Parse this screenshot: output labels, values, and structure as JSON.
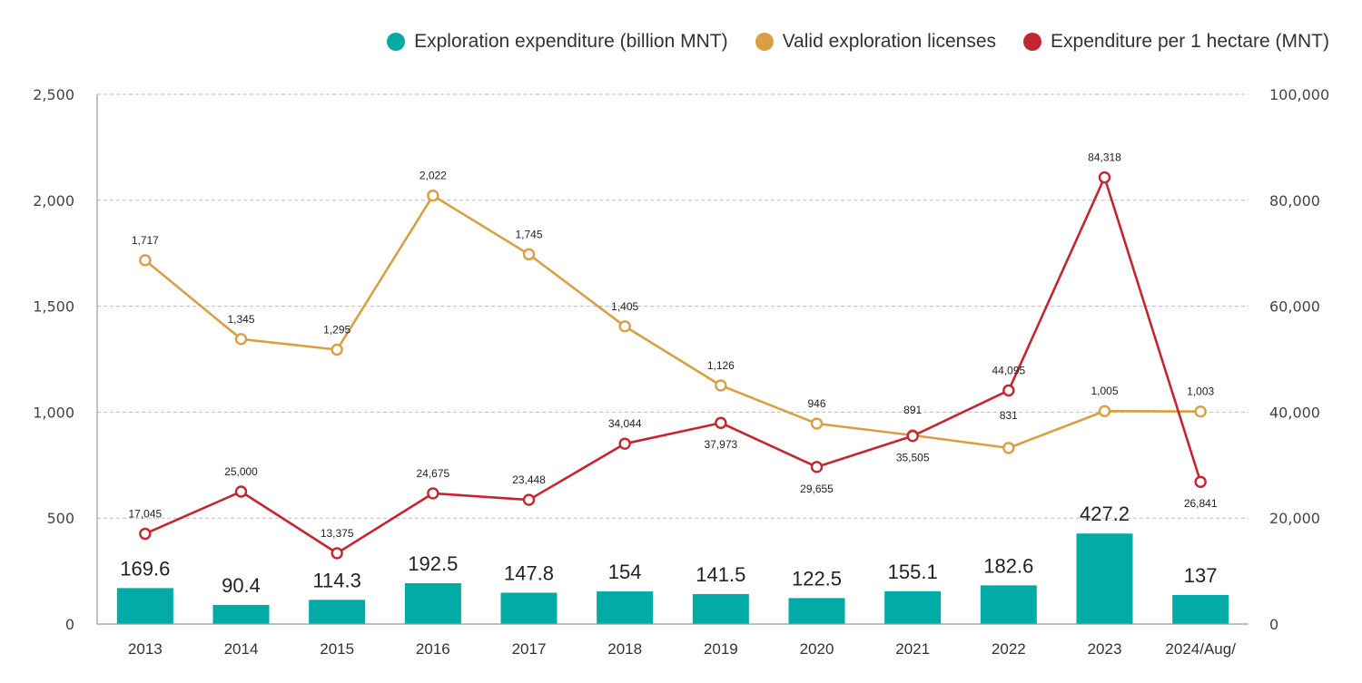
{
  "chart_data": {
    "type": "bar+line",
    "title": "",
    "categories": [
      "2013",
      "2014",
      "2015",
      "2016",
      "2017",
      "2018",
      "2019",
      "2020",
      "2021",
      "2022",
      "2023",
      "2024/Aug/"
    ],
    "legend_position": "top-right",
    "grid": true,
    "left_axis": {
      "ylim": [
        0,
        2500
      ],
      "ticks": [
        "0",
        "500",
        "1,000",
        "1,500",
        "2,000",
        "2,500"
      ],
      "tick_values": [
        0,
        500,
        1000,
        1500,
        2000,
        2500
      ]
    },
    "right_axis": {
      "ylim": [
        0,
        100000
      ],
      "ticks": [
        "0",
        "20,000",
        "40,000",
        "60,000",
        "80,000",
        "100,000"
      ],
      "tick_values": [
        0,
        20000,
        40000,
        60000,
        80000,
        100000
      ]
    },
    "series": [
      {
        "name": "Exploration expenditure (billion MNT)",
        "type": "bar",
        "axis": "left",
        "color": "#03ABA6",
        "values": [
          169.6,
          90.4,
          114.3,
          192.5,
          147.8,
          154,
          141.5,
          122.5,
          155.1,
          182.6,
          427.2,
          137
        ],
        "labels": [
          "169.6",
          "90.4",
          "114.3",
          "192.5",
          "147.8",
          "154",
          "141.5",
          "122.5",
          "155.1",
          "182.6",
          "427.2",
          "137"
        ]
      },
      {
        "name": "Valid exploration licenses",
        "type": "line",
        "axis": "left",
        "color": "#D9A042",
        "values": [
          1717,
          1345,
          1295,
          2022,
          1745,
          1405,
          1126,
          946,
          891,
          831,
          1005,
          1003
        ],
        "labels": [
          "1,717",
          "1,345",
          "1,295",
          "2,022",
          "1,745",
          "1,405",
          "1,126",
          "946",
          "891",
          "831",
          "1,005",
          "1,003"
        ]
      },
      {
        "name": "Expenditure per 1 hectare (MNT)",
        "type": "line",
        "axis": "right",
        "color": "#C3262F",
        "values": [
          17045,
          25000,
          13375,
          24675,
          23448,
          34044,
          37973,
          29655,
          35505,
          44095,
          84318,
          26841
        ],
        "labels": [
          "17,045",
          "25,000",
          "13,375",
          "24,675",
          "23,448",
          "34,044",
          "37,973",
          "29,655",
          "35,505",
          "44,095",
          "84,318",
          "26,841"
        ]
      }
    ]
  }
}
